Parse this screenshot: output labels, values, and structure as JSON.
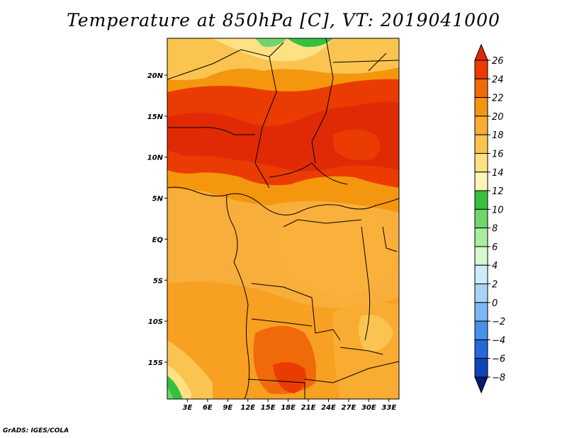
{
  "title": "Temperature at 850hPa [C], VT: 2019041000",
  "footer": "GrADS: IGES/COLA",
  "map": {
    "variable": "Temperature at 850hPa",
    "units": "C",
    "valid_time": "2019041000",
    "lon_range": [
      0,
      34.5
    ],
    "lat_range": [
      -19.5,
      24.5
    ],
    "lat_ticks": [
      {
        "value": 20,
        "label": "20N"
      },
      {
        "value": 15,
        "label": "15N"
      },
      {
        "value": 10,
        "label": "10N"
      },
      {
        "value": 5,
        "label": "5N"
      },
      {
        "value": 0,
        "label": "EQ"
      },
      {
        "value": -5,
        "label": "5S"
      },
      {
        "value": -10,
        "label": "10S"
      },
      {
        "value": -15,
        "label": "15S"
      }
    ],
    "lon_ticks": [
      {
        "value": 3,
        "label": "3E"
      },
      {
        "value": 6,
        "label": "6E"
      },
      {
        "value": 9,
        "label": "9E"
      },
      {
        "value": 12,
        "label": "12E"
      },
      {
        "value": 15,
        "label": "15E"
      },
      {
        "value": 18,
        "label": "18E"
      },
      {
        "value": 21,
        "label": "21E"
      },
      {
        "value": 24,
        "label": "24E"
      },
      {
        "value": 27,
        "label": "27E"
      },
      {
        "value": 30,
        "label": "30E"
      },
      {
        "value": 33,
        "label": "33E"
      }
    ]
  },
  "colorbar": {
    "levels": [
      26,
      24,
      22,
      20,
      18,
      16,
      14,
      12,
      10,
      8,
      6,
      4,
      2,
      0,
      -2,
      -4,
      -6,
      -8
    ],
    "labels": [
      "26",
      "24",
      "22",
      "20",
      "18",
      "16",
      "14",
      "12",
      "10",
      "8",
      "6",
      "4",
      "2",
      "0",
      "−2",
      "−4",
      "−6",
      "−8"
    ],
    "colors": [
      "#e02a06",
      "#ea3c02",
      "#f06a0a",
      "#f5960f",
      "#f8ad32",
      "#fbc450",
      "#fde183",
      "#fff5b8",
      "#37c040",
      "#6fd66a",
      "#a8eca0",
      "#d6f7d0",
      "#cdecfb",
      "#a8d4f7",
      "#7db7f2",
      "#4a90ea",
      "#2568d8",
      "#1144bb",
      "#0b2a9a",
      "#091a6e"
    ]
  },
  "colors": {
    "background": "#ffffff",
    "frame": "#000000",
    "ocean_fill": "#f8b144",
    "boundary": "#000000"
  }
}
